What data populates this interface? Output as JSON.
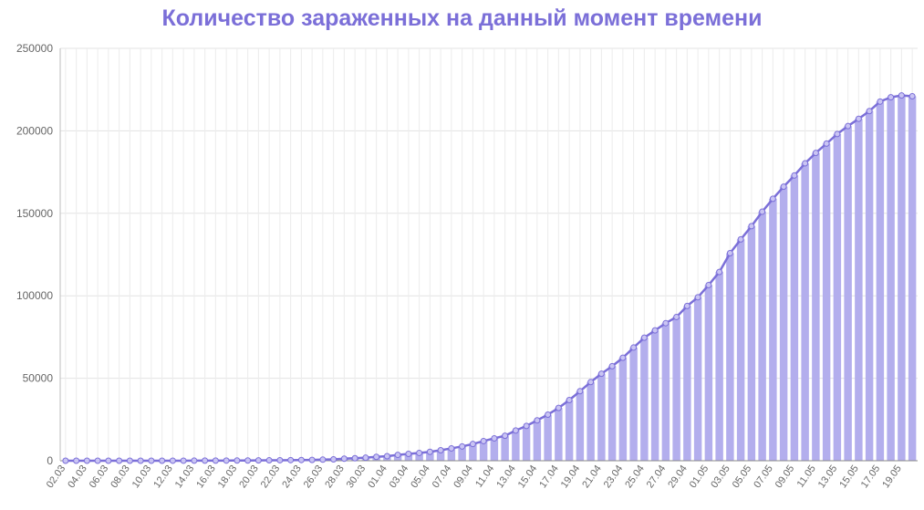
{
  "chart_data": {
    "type": "bar",
    "title": "Количество зараженных на данный момент времени",
    "xlabel": "",
    "ylabel": "",
    "ylim": [
      0,
      250000
    ],
    "yticks": [
      "0",
      "50000",
      "100000",
      "150000",
      "200000",
      "250000"
    ],
    "grid": true,
    "colors": {
      "bar": "#b3aeed",
      "line": "#7b6fd8",
      "title": "#7b6fd8"
    },
    "categories": [
      "02.03",
      "03.03",
      "04.03",
      "05.03",
      "06.03",
      "07.03",
      "08.03",
      "09.03",
      "10.03",
      "11.03",
      "12.03",
      "13.03",
      "14.03",
      "15.03",
      "16.03",
      "17.03",
      "18.03",
      "19.03",
      "20.03",
      "21.03",
      "22.03",
      "23.03",
      "24.03",
      "25.03",
      "26.03",
      "27.03",
      "28.03",
      "29.03",
      "30.03",
      "31.03",
      "01.04",
      "02.04",
      "03.04",
      "04.04",
      "05.04",
      "06.04",
      "07.04",
      "08.04",
      "09.04",
      "10.04",
      "11.04",
      "12.04",
      "13.04",
      "14.04",
      "15.04",
      "16.04",
      "17.04",
      "18.04",
      "19.04",
      "20.04",
      "21.04",
      "22.04",
      "23.04",
      "24.04",
      "25.04",
      "26.04",
      "27.04",
      "28.04",
      "29.04",
      "30.04",
      "01.05",
      "02.05",
      "03.05",
      "04.05",
      "05.05",
      "06.05",
      "07.05",
      "08.05",
      "09.05",
      "10.05",
      "11.05",
      "12.05",
      "13.05",
      "14.05",
      "15.05",
      "16.05",
      "17.05",
      "18.05",
      "19.05",
      "20.05"
    ],
    "tick_labels": [
      "02.03",
      "04.03",
      "06.03",
      "08.03",
      "10.03",
      "12.03",
      "14.03",
      "16.03",
      "18.03",
      "20.03",
      "22.03",
      "24.03",
      "26.03",
      "28.03",
      "30.03",
      "01.04",
      "03.04",
      "05.04",
      "07.04",
      "09.04",
      "11.04",
      "13.04",
      "15.04",
      "17.04",
      "19.04",
      "21.04",
      "23.04",
      "25.04",
      "27.04",
      "29.04",
      "01.05",
      "03.05",
      "05.05",
      "07.05",
      "09.05",
      "11.05",
      "13.05",
      "15.05",
      "17.05",
      "19.05"
    ],
    "values": [
      1,
      2,
      2,
      3,
      5,
      7,
      10,
      13,
      17,
      20,
      28,
      34,
      45,
      59,
      63,
      93,
      114,
      147,
      199,
      253,
      306,
      367,
      438,
      495,
      658,
      840,
      1264,
      1534,
      1836,
      2337,
      2777,
      3548,
      4149,
      4731,
      5389,
      6343,
      7497,
      8672,
      10131,
      11917,
      13584,
      15150,
      18328,
      21102,
      24490,
      27938,
      32008,
      36775,
      42153,
      47680,
      52763,
      57327,
      62439,
      68622,
      74588,
      79007,
      83409,
      87147,
      93806,
      99099,
      106498,
      114431,
      125817,
      134186,
      142208,
      150969,
      158828,
      166155,
      172940,
      180287,
      186615,
      192254,
      198073,
      202891,
      207301,
      211991,
      217747,
      220341,
      221436,
      220944
    ]
  }
}
